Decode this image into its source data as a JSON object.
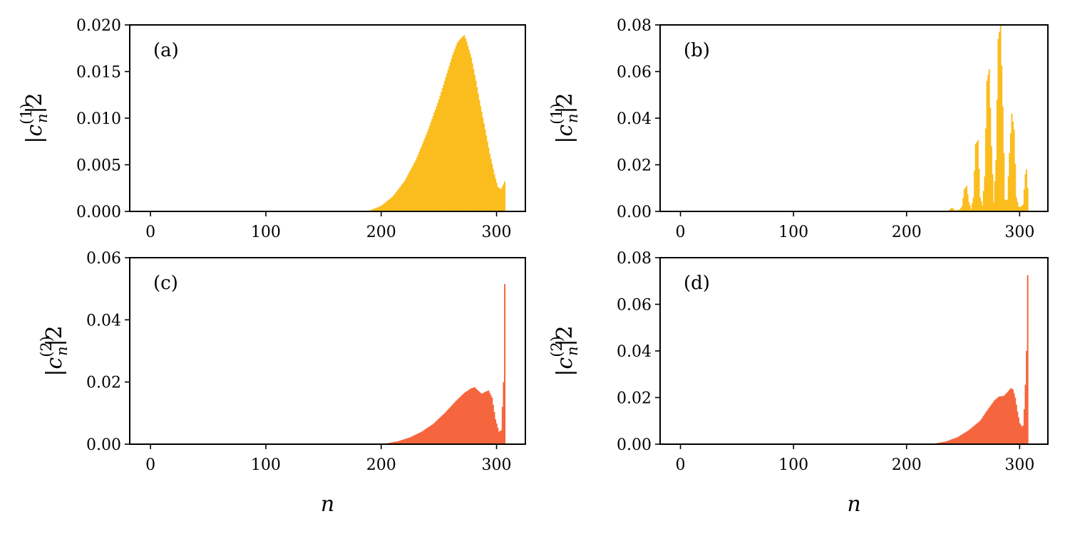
{
  "colors": {
    "series1": "#fbbd1e",
    "series2": "#f5663e"
  },
  "xlabel": "n",
  "chart_data": [
    {
      "type": "bar",
      "panel": "(a)",
      "ylabel": {
        "left": "|",
        "base": "c",
        "sub": "n",
        "sup": "(1)",
        "tail": "|2"
      },
      "xlim": [
        -18,
        325
      ],
      "ylim": [
        0,
        0.02
      ],
      "xticks": [
        0,
        100,
        200,
        300
      ],
      "xtick_labels": [
        "0",
        "100",
        "200",
        "300"
      ],
      "yticks": [
        0,
        0.005,
        0.01,
        0.015,
        0.02
      ],
      "ytick_labels": [
        "0.000",
        "0.005",
        "0.010",
        "0.015",
        "0.020"
      ],
      "color_key": "series1",
      "n_max": 307,
      "profile": [
        [
          0,
          0
        ],
        [
          180,
          0
        ],
        [
          190,
          0.0001
        ],
        [
          200,
          0.0006
        ],
        [
          210,
          0.0016
        ],
        [
          220,
          0.0032
        ],
        [
          230,
          0.0055
        ],
        [
          240,
          0.0085
        ],
        [
          250,
          0.012
        ],
        [
          258,
          0.0152
        ],
        [
          262,
          0.0168
        ],
        [
          266,
          0.0181
        ],
        [
          270,
          0.0187
        ],
        [
          272,
          0.0189
        ],
        [
          274,
          0.0182
        ],
        [
          278,
          0.0165
        ],
        [
          282,
          0.014
        ],
        [
          286,
          0.0113
        ],
        [
          290,
          0.0088
        ],
        [
          294,
          0.0062
        ],
        [
          298,
          0.004
        ],
        [
          301,
          0.0026
        ],
        [
          304,
          0.0024
        ],
        [
          307,
          0.0032
        ]
      ]
    },
    {
      "type": "bar",
      "panel": "(b)",
      "ylabel": {
        "left": "|",
        "base": "c",
        "sub": "n",
        "sup": "(1)",
        "tail": "|2"
      },
      "xlim": [
        -18,
        325
      ],
      "ylim": [
        0,
        0.08
      ],
      "xticks": [
        0,
        100,
        200,
        300
      ],
      "xtick_labels": [
        "0",
        "100",
        "200",
        "300"
      ],
      "yticks": [
        0,
        0.02,
        0.04,
        0.06,
        0.08
      ],
      "ytick_labels": [
        "0.00",
        "0.02",
        "0.04",
        "0.06",
        "0.08"
      ],
      "color_key": "series1",
      "n_max": 307,
      "profile": [
        [
          0,
          0
        ],
        [
          236,
          0
        ],
        [
          237,
          0.0004
        ],
        [
          240,
          0.0016
        ],
        [
          243,
          0.0004
        ],
        [
          245,
          0.0006
        ],
        [
          247,
          0.0008
        ],
        [
          249,
          0.0022
        ],
        [
          251,
          0.0095
        ],
        [
          253,
          0.011
        ],
        [
          255,
          0.004
        ],
        [
          257,
          0.001
        ],
        [
          259,
          0.006
        ],
        [
          261,
          0.029
        ],
        [
          263,
          0.0305
        ],
        [
          265,
          0.006
        ],
        [
          267,
          0.0025
        ],
        [
          269,
          0.015
        ],
        [
          271,
          0.056
        ],
        [
          273,
          0.061
        ],
        [
          275,
          0.028
        ],
        [
          277,
          0.004
        ],
        [
          279,
          0.022
        ],
        [
          281,
          0.074
        ],
        [
          283,
          0.08
        ],
        [
          285,
          0.045
        ],
        [
          287,
          0.005
        ],
        [
          289,
          0.005
        ],
        [
          291,
          0.025
        ],
        [
          293,
          0.042
        ],
        [
          295,
          0.035
        ],
        [
          297,
          0.006
        ],
        [
          299,
          0.002
        ],
        [
          301,
          0.002
        ],
        [
          303,
          0.003
        ],
        [
          305,
          0.016
        ],
        [
          306,
          0.018
        ],
        [
          307,
          0.01
        ]
      ]
    },
    {
      "type": "bar",
      "panel": "(c)",
      "ylabel": {
        "left": "|",
        "base": "c",
        "sub": "n",
        "sup": "(2)",
        "tail": "|2"
      },
      "xlim": [
        -18,
        325
      ],
      "ylim": [
        0,
        0.06
      ],
      "xticks": [
        0,
        100,
        200,
        300
      ],
      "xtick_labels": [
        "0",
        "100",
        "200",
        "300"
      ],
      "yticks": [
        0,
        0.02,
        0.04,
        0.06
      ],
      "ytick_labels": [
        "0.00",
        "0.02",
        "0.04",
        "0.06"
      ],
      "color_key": "series2",
      "n_max": 307,
      "profile": [
        [
          0,
          0
        ],
        [
          195,
          0
        ],
        [
          205,
          0.0003
        ],
        [
          215,
          0.001
        ],
        [
          225,
          0.0022
        ],
        [
          235,
          0.004
        ],
        [
          245,
          0.0065
        ],
        [
          255,
          0.01
        ],
        [
          265,
          0.014
        ],
        [
          272,
          0.0165
        ],
        [
          278,
          0.018
        ],
        [
          281,
          0.0183
        ],
        [
          284,
          0.0172
        ],
        [
          287,
          0.0162
        ],
        [
          290,
          0.0168
        ],
        [
          293,
          0.0173
        ],
        [
          296,
          0.015
        ],
        [
          299,
          0.008
        ],
        [
          302,
          0.004
        ],
        [
          304,
          0.0045
        ],
        [
          305,
          0.012
        ],
        [
          306,
          0.02
        ],
        [
          307,
          0.0515
        ]
      ]
    },
    {
      "type": "bar",
      "panel": "(d)",
      "ylabel": {
        "left": "|",
        "base": "c",
        "sub": "n",
        "sup": "(2)",
        "tail": "|2"
      },
      "xlim": [
        -18,
        325
      ],
      "ylim": [
        0,
        0.08
      ],
      "xticks": [
        0,
        100,
        200,
        300
      ],
      "xtick_labels": [
        "0",
        "100",
        "200",
        "300"
      ],
      "yticks": [
        0,
        0.02,
        0.04,
        0.06,
        0.08
      ],
      "ytick_labels": [
        "0.00",
        "0.02",
        "0.04",
        "0.06",
        "0.08"
      ],
      "color_key": "series2",
      "n_max": 307,
      "profile": [
        [
          0,
          0
        ],
        [
          215,
          0
        ],
        [
          225,
          0.0003
        ],
        [
          235,
          0.0012
        ],
        [
          245,
          0.003
        ],
        [
          255,
          0.006
        ],
        [
          265,
          0.01
        ],
        [
          272,
          0.015
        ],
        [
          278,
          0.019
        ],
        [
          282,
          0.0205
        ],
        [
          286,
          0.0207
        ],
        [
          289,
          0.0222
        ],
        [
          292,
          0.024
        ],
        [
          294,
          0.0235
        ],
        [
          296,
          0.02
        ],
        [
          298,
          0.014
        ],
        [
          300,
          0.009
        ],
        [
          302,
          0.0075
        ],
        [
          303,
          0.008
        ],
        [
          304,
          0.015
        ],
        [
          305,
          0.0255
        ],
        [
          306,
          0.04
        ],
        [
          307,
          0.0725
        ]
      ]
    }
  ]
}
